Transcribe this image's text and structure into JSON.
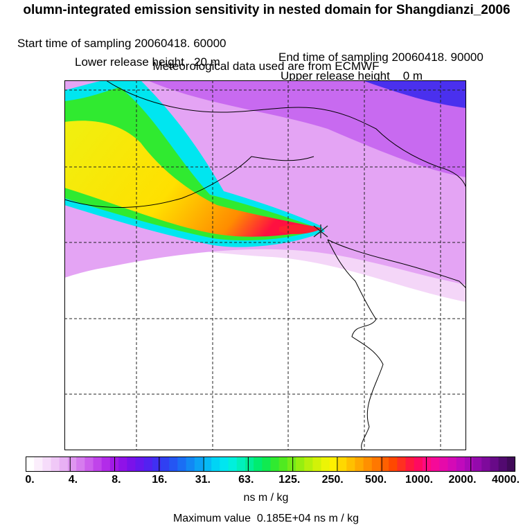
{
  "header": {
    "title": "olumn-integrated emission sensitivity in nested domain for Shangdianzi_2006",
    "start_label": "Start time of sampling 20060418. 60000",
    "end_label": "End time of sampling 20060418. 90000",
    "lower_label": "Lower release height   20 m",
    "upper_label": "Upper release height    0 m",
    "met_label": "Meteorological data used are from ECMWF"
  },
  "colorbar": {
    "ticks": [
      "0.",
      "4.",
      "8.",
      "16.",
      "31.",
      "63.",
      "125.",
      "250.",
      "500.",
      "1000.",
      "2000.",
      "4000."
    ],
    "colors": [
      "#ffffff",
      "#fbeefc",
      "#f6dcfa",
      "#f0c8f7",
      "#e8b0f4",
      "#df96f0",
      "#d67cee",
      "#cc5fec",
      "#c044ea",
      "#b22ce9",
      "#a11ae6",
      "#8f12e8",
      "#7a12ea",
      "#6618ee",
      "#5322f0",
      "#4030f2",
      "#3040f2",
      "#2456f3",
      "#1a6ef4",
      "#1288f4",
      "#0ca2f5",
      "#06baf5",
      "#00d4f5",
      "#00e6f0",
      "#00f0dc",
      "#00f0bc",
      "#00ee96",
      "#00ec70",
      "#10ea50",
      "#30ea30",
      "#50ea20",
      "#74ec18",
      "#96ee10",
      "#b6f00c",
      "#d2f208",
      "#ecf406",
      "#fff000",
      "#ffd800",
      "#ffc000",
      "#ffa800",
      "#ff9000",
      "#ff7800",
      "#ff6000",
      "#ff4800",
      "#ff3020",
      "#ff1840",
      "#ff0a60",
      "#ff0a80",
      "#f50a98",
      "#e60aaa",
      "#d40ab6",
      "#c00abc",
      "#aa0ab8",
      "#940aac",
      "#7e0a9c",
      "#680a88",
      "#520a70",
      "#400a58"
    ],
    "units": "ns m / kg",
    "max_value_label": "Maximum value  0.185E+04 ns m / kg"
  },
  "map": {
    "background_color": "#e2a2f2",
    "grid_lines_style": "dashed"
  }
}
